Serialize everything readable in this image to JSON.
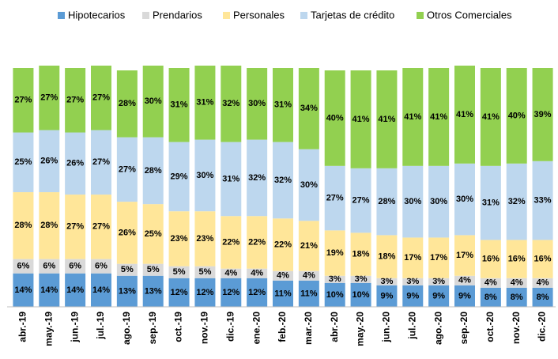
{
  "chart_data": {
    "type": "stacked_bar",
    "categories": [
      "abr.-19",
      "may.-19",
      "jun.-19",
      "jul.-19",
      "ago.-19",
      "sep.-19",
      "oct.-19",
      "nov.-19",
      "dic.-19",
      "ene.-20",
      "feb.-20",
      "mar.-20",
      "abr.-20",
      "may.-20",
      "jun.-20",
      "jul.-20",
      "ago.-20",
      "sep.-20",
      "oct.-20",
      "nov.-20",
      "dic.-20"
    ],
    "ylim": [
      0,
      100
    ],
    "legend": "top",
    "series": [
      {
        "name": "Hipotecarios",
        "color": "#5b9bd5",
        "values": [
          14,
          14,
          14,
          14,
          13,
          13,
          12,
          12,
          12,
          12,
          11,
          11,
          10,
          10,
          9,
          9,
          9,
          9,
          8,
          8,
          8
        ],
        "value_labels": [
          "14%",
          "14%",
          "14%",
          "14%",
          "13%",
          "13%",
          "12%",
          "12%",
          "12%",
          "12%",
          "11%",
          "11%",
          "10%",
          "10%",
          "9%",
          "9%",
          "9%",
          "9%",
          "8%",
          "8%",
          "8%"
        ]
      },
      {
        "name": "Prendarios",
        "color": "#d9d9d9",
        "values": [
          6,
          6,
          6,
          6,
          5,
          5,
          5,
          5,
          4,
          4,
          4,
          4,
          3,
          3,
          3,
          3,
          3,
          4,
          4,
          4,
          4
        ],
        "value_labels": [
          "6%",
          "6%",
          "6%",
          "6%",
          "5%",
          "5%",
          "5%",
          "5%",
          "4%",
          "4%",
          "4%",
          "4%",
          "3%",
          "3%",
          "3%",
          "3%",
          "3%",
          "4%",
          "4%",
          "4%",
          "4%"
        ]
      },
      {
        "name": "Personales",
        "color": "#ffe699",
        "values": [
          28,
          28,
          27,
          27,
          26,
          25,
          23,
          23,
          22,
          22,
          22,
          21,
          19,
          18,
          18,
          17,
          17,
          17,
          16,
          16,
          16
        ],
        "value_labels": [
          "28%",
          "28%",
          "27%",
          "27%",
          "26%",
          "25%",
          "23%",
          "23%",
          "22%",
          "22%",
          "22%",
          "21%",
          "19%",
          "18%",
          "18%",
          "17%",
          "17%",
          "17%",
          "16%",
          "16%",
          "16%"
        ]
      },
      {
        "name": "Tarjetas de crédito",
        "color": "#bdd7ee",
        "values": [
          25,
          26,
          26,
          27,
          27,
          28,
          29,
          30,
          31,
          32,
          32,
          30,
          27,
          27,
          28,
          30,
          30,
          30,
          31,
          32,
          33
        ],
        "value_labels": [
          "25%",
          "26%",
          "26%",
          "27%",
          "27%",
          "28%",
          "29%",
          "30%",
          "31%",
          "32%",
          "32%",
          "30%",
          "27%",
          "27%",
          "28%",
          "30%",
          "30%",
          "30%",
          "31%",
          "32%",
          "33%"
        ]
      },
      {
        "name": "Otros Comerciales",
        "color": "#92d050",
        "values": [
          27,
          27,
          27,
          27,
          28,
          30,
          31,
          31,
          32,
          30,
          31,
          34,
          40,
          41,
          41,
          41,
          41,
          41,
          41,
          40,
          39
        ],
        "value_labels": [
          "27%",
          "27%",
          "27%",
          "27%",
          "28%",
          "30%",
          "31%",
          "31%",
          "32%",
          "30%",
          "31%",
          "34%",
          "40%",
          "41%",
          "41%",
          "41%",
          "41%",
          "41%",
          "41%",
          "40%",
          "39%"
        ]
      }
    ]
  }
}
